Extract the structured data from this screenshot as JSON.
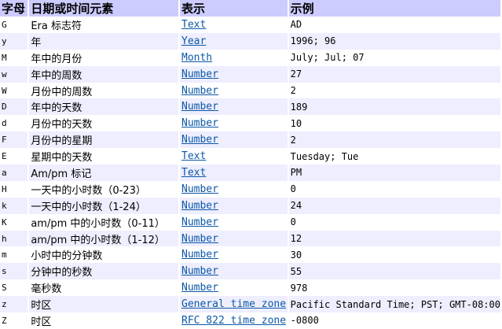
{
  "headers": [
    "字母",
    "日期或时间元素",
    "表示",
    "示例"
  ],
  "rows": [
    [
      "G",
      "Era 标志符",
      "Text",
      "AD"
    ],
    [
      "y",
      "年",
      "Year",
      "1996; 96"
    ],
    [
      "M",
      "年中的月份",
      "Month",
      "July; Jul; 07"
    ],
    [
      "w",
      "年中的周数",
      "Number",
      "27"
    ],
    [
      "W",
      "月份中的周数",
      "Number",
      "2"
    ],
    [
      "D",
      "年中的天数",
      "Number",
      "189"
    ],
    [
      "d",
      "月份中的天数",
      "Number",
      "10"
    ],
    [
      "F",
      "月份中的星期",
      "Number",
      "2"
    ],
    [
      "E",
      "星期中的天数",
      "Text",
      "Tuesday; Tue"
    ],
    [
      "a",
      "Am/pm 标记",
      "Text",
      "PM"
    ],
    [
      "H",
      "一天中的小时数（0-23）",
      "Number",
      "0"
    ],
    [
      "k",
      "一天中的小时数（1-24）",
      "Number",
      "24"
    ],
    [
      "K",
      "am/pm 中的小时数（0-11）",
      "Number",
      "0"
    ],
    [
      "h",
      "am/pm 中的小时数（1-12）",
      "Number",
      "12"
    ],
    [
      "m",
      "小时中的分钟数",
      "Number",
      "30"
    ],
    [
      "s",
      "分钟中的秒数",
      "Number",
      "55"
    ],
    [
      "S",
      "毫秒数",
      "Number",
      "978"
    ],
    [
      "z",
      "时区",
      "General time zone",
      "Pacific Standard Time; PST; GMT-08:00"
    ],
    [
      "Z",
      "时区",
      "RFC 822 time zone",
      "-0800"
    ]
  ]
}
